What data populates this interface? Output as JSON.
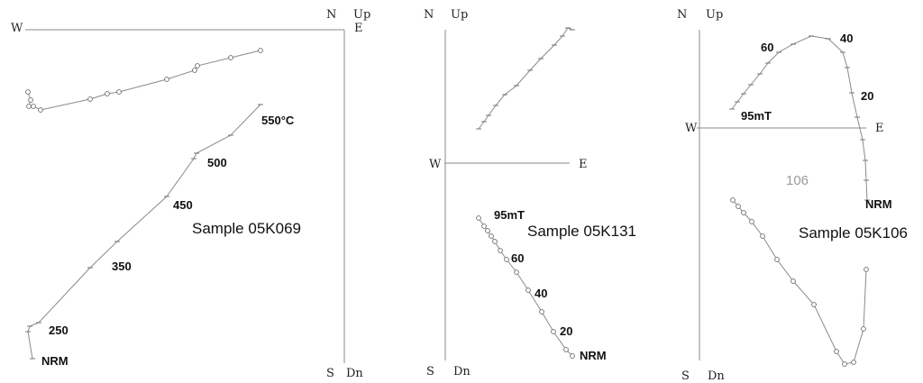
{
  "panels": [
    {
      "id": "05K069",
      "sample_label": "Sample 05K069",
      "axis_labels": {
        "north": "N",
        "up": "Up",
        "south": "S",
        "down": "Dn",
        "west": "W",
        "east": "E"
      },
      "step_labels": [
        "550°C",
        "500",
        "450",
        "350",
        "250",
        "NRM"
      ]
    },
    {
      "id": "05K131",
      "sample_label": "Sample 05K131",
      "axis_labels": {
        "north": "N",
        "up": "Up",
        "south": "S",
        "down": "Dn",
        "west": "W",
        "east": "E"
      },
      "step_labels": [
        "95mT",
        "60",
        "40",
        "20",
        "NRM"
      ]
    },
    {
      "id": "05K106",
      "sample_label": "Sample 05K106",
      "annotation": "106",
      "axis_labels": {
        "north": "N",
        "up": "Up",
        "south": "S",
        "down": "Dn",
        "west": "W",
        "east": "E"
      },
      "step_labels": [
        "60",
        "40",
        "20",
        "95mT",
        "NRM"
      ]
    }
  ]
}
